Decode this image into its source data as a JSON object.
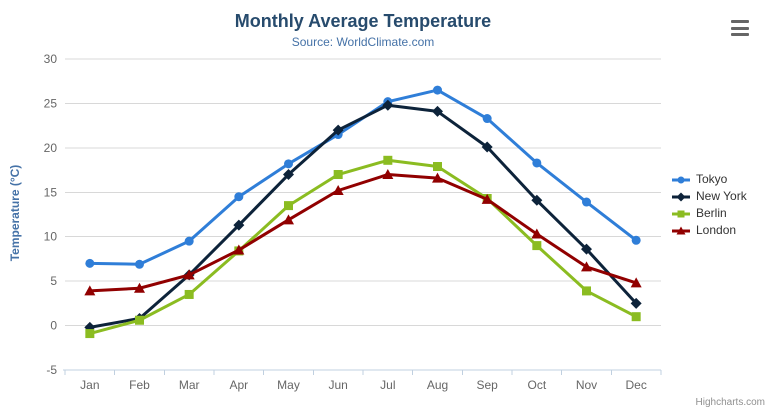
{
  "chart": {
    "credits": "Highcharts.com",
    "context_button_icon": "hamburger-icon"
  },
  "colors": {
    "title_text": "#274b6d",
    "subtitle_text": "#4572a7",
    "axis_title_text": "#4572a7",
    "tick_label_text": "#666666",
    "gridline": "#d8d8d8",
    "axis_line": "#c0d0e0",
    "legend_text": "#333333",
    "credits_text": "#909090",
    "background": "#ffffff"
  },
  "chart_data": {
    "type": "line",
    "title": "Monthly Average Temperature",
    "subtitle": "Source: WorldClimate.com",
    "xlabel": "",
    "ylabel": "Temperature (°C)",
    "categories": [
      "Jan",
      "Feb",
      "Mar",
      "Apr",
      "May",
      "Jun",
      "Jul",
      "Aug",
      "Sep",
      "Oct",
      "Nov",
      "Dec"
    ],
    "ylim": [
      -5,
      30
    ],
    "ytick_step": 5,
    "grid": true,
    "legend_position": "right",
    "series": [
      {
        "name": "Tokyo",
        "color": "#2f7ed8",
        "marker": "circle",
        "values": [
          7.0,
          6.9,
          9.5,
          14.5,
          18.2,
          21.5,
          25.2,
          26.5,
          23.3,
          18.3,
          13.9,
          9.6
        ]
      },
      {
        "name": "New York",
        "color": "#0d233a",
        "marker": "diamond",
        "values": [
          -0.2,
          0.8,
          5.7,
          11.3,
          17.0,
          22.0,
          24.8,
          24.1,
          20.1,
          14.1,
          8.6,
          2.5
        ]
      },
      {
        "name": "Berlin",
        "color": "#8bbc21",
        "marker": "square",
        "values": [
          -0.9,
          0.6,
          3.5,
          8.4,
          13.5,
          17.0,
          18.6,
          17.9,
          14.3,
          9.0,
          3.9,
          1.0
        ]
      },
      {
        "name": "London",
        "color": "#910000",
        "marker": "triangle",
        "values": [
          3.9,
          4.2,
          5.7,
          8.5,
          11.9,
          15.2,
          17.0,
          16.6,
          14.2,
          10.3,
          6.6,
          4.8
        ]
      }
    ]
  }
}
